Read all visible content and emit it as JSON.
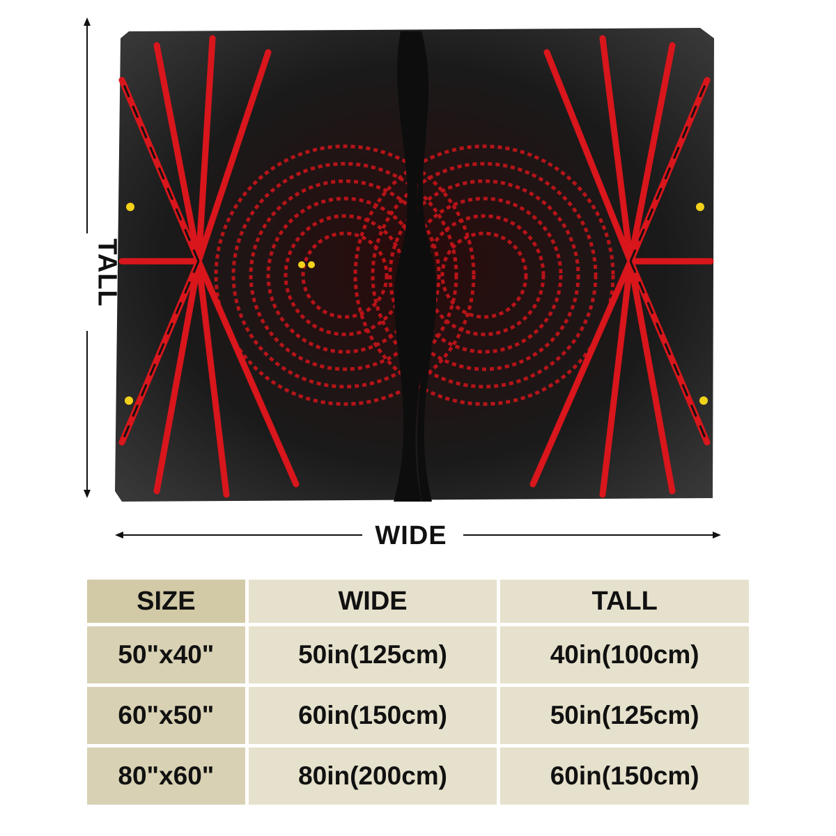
{
  "dimension_labels": {
    "tall": "TALL",
    "wide": "WIDE"
  },
  "size_table": {
    "headers": [
      "SIZE",
      "WIDE",
      "TALL"
    ],
    "rows": [
      [
        "50\"x40\"",
        "50in(125cm)",
        "40in(100cm)"
      ],
      [
        "60\"x50\"",
        "60in(150cm)",
        "50in(125cm)"
      ],
      [
        "80\"x60\"",
        "80in(200cm)",
        "60in(150cm)"
      ]
    ]
  },
  "colors": {
    "pattern_red": "#c8141a",
    "pattern_dark": "#111111",
    "table_header": "#d2c9a6",
    "table_cell": "#e6e1cc"
  }
}
